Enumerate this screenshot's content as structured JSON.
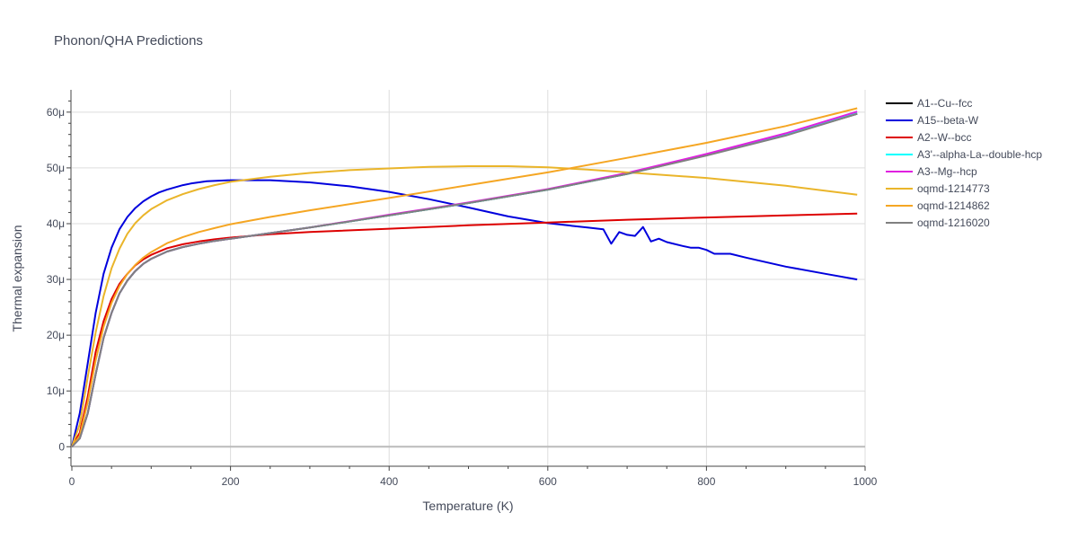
{
  "chart_data": {
    "type": "line",
    "title": "Phonon/QHA Predictions",
    "xlabel": "Temperature (K)",
    "ylabel": "Thermal expansion",
    "xlim": [
      0,
      1000
    ],
    "ylim": [
      -3.5,
      64
    ],
    "x_ticks": [
      0,
      200,
      400,
      600,
      800,
      1000
    ],
    "x_tick_labels": [
      "0",
      "200",
      "400",
      "600",
      "800",
      "1000"
    ],
    "y_ticks": [
      0,
      10,
      20,
      30,
      40,
      50,
      60
    ],
    "y_tick_labels": [
      "0",
      "10μ",
      "20μ",
      "30μ",
      "40μ",
      "50μ",
      "60μ"
    ],
    "grid": true,
    "legend_position": "right",
    "series": [
      {
        "name": "A1--Cu--fcc",
        "color": "#000000",
        "x": [
          0,
          10,
          20,
          30,
          40,
          50,
          60,
          70,
          80,
          90,
          100,
          120,
          140,
          160,
          180,
          200,
          250,
          300,
          400,
          500,
          600,
          700,
          800,
          900,
          990
        ],
        "y": [
          0,
          1.5,
          6,
          13,
          19.5,
          24,
          27.5,
          29.8,
          31.5,
          32.8,
          33.7,
          35,
          35.8,
          36.4,
          36.9,
          37.3,
          38.3,
          39.3,
          41.5,
          43.7,
          46.1,
          48.9,
          52.3,
          55.9,
          59.7
        ]
      },
      {
        "name": "A15--beta-W",
        "color": "#0000dd",
        "x": [
          0,
          10,
          20,
          30,
          40,
          50,
          60,
          70,
          80,
          90,
          100,
          110,
          120,
          130,
          140,
          150,
          170,
          200,
          250,
          300,
          350,
          400,
          450,
          500,
          550,
          600,
          650,
          670,
          680,
          690,
          700,
          710,
          720,
          730,
          740,
          750,
          770,
          780,
          790,
          800,
          810,
          820,
          830,
          850,
          900,
          950,
          990
        ],
        "y": [
          0,
          6,
          15,
          24,
          31,
          35.7,
          39,
          41.2,
          42.8,
          44,
          44.9,
          45.6,
          46.1,
          46.5,
          46.9,
          47.2,
          47.6,
          47.8,
          47.8,
          47.4,
          46.7,
          45.7,
          44.4,
          42.9,
          41.3,
          40.1,
          39.3,
          39,
          36.4,
          38.5,
          38,
          37.8,
          39.4,
          36.8,
          37.3,
          36.7,
          36,
          35.7,
          35.7,
          35.3,
          34.6,
          34.6,
          34.6,
          33.9,
          32.3,
          31,
          30
        ]
      },
      {
        "name": "A2--W--bcc",
        "color": "#dd0000",
        "x": [
          0,
          10,
          20,
          30,
          40,
          50,
          60,
          70,
          80,
          90,
          100,
          120,
          140,
          160,
          180,
          200,
          250,
          300,
          400,
          500,
          600,
          700,
          800,
          900,
          990
        ],
        "y": [
          0,
          2.5,
          9,
          17,
          22.5,
          26.5,
          29.2,
          31,
          32.5,
          33.6,
          34.4,
          35.6,
          36.3,
          36.8,
          37.2,
          37.5,
          38.1,
          38.5,
          39.1,
          39.7,
          40.2,
          40.7,
          41.1,
          41.5,
          41.8
        ]
      },
      {
        "name": "A3'--alpha-La--double-hcp",
        "color": "#00ffff",
        "x": [
          0,
          10,
          20,
          30,
          40,
          50,
          60,
          70,
          80,
          90,
          100,
          120,
          140,
          160,
          180,
          200,
          250,
          300,
          400,
          500,
          600,
          700,
          800,
          900,
          990
        ],
        "y": [
          0,
          1.5,
          6,
          13,
          19.5,
          24,
          27.5,
          29.8,
          31.5,
          32.8,
          33.7,
          35,
          35.8,
          36.4,
          36.9,
          37.3,
          38.3,
          39.3,
          41.5,
          43.7,
          46.1,
          48.9,
          52.3,
          55.9,
          59.8
        ]
      },
      {
        "name": "A3--Mg--hcp",
        "color": "#e020e0",
        "x": [
          0,
          10,
          20,
          30,
          40,
          50,
          60,
          70,
          80,
          90,
          100,
          120,
          140,
          160,
          180,
          200,
          250,
          300,
          400,
          500,
          600,
          700,
          800,
          900,
          990
        ],
        "y": [
          0,
          1.5,
          6,
          13,
          19.5,
          24,
          27.5,
          29.8,
          31.5,
          32.8,
          33.7,
          35,
          35.8,
          36.4,
          36.9,
          37.3,
          38.3,
          39.3,
          41.6,
          43.8,
          46.2,
          49.1,
          52.5,
          56.2,
          60.1
        ]
      },
      {
        "name": "oqmd-1214773",
        "color": "#eab52a",
        "x": [
          0,
          10,
          20,
          30,
          40,
          50,
          60,
          70,
          80,
          90,
          100,
          120,
          140,
          160,
          180,
          200,
          250,
          300,
          350,
          400,
          450,
          500,
          550,
          600,
          650,
          700,
          800,
          900,
          990
        ],
        "y": [
          0,
          4,
          12.5,
          20.5,
          27,
          32,
          35.5,
          38.2,
          40.1,
          41.5,
          42.6,
          44.2,
          45.3,
          46.2,
          46.9,
          47.5,
          48.4,
          49.1,
          49.6,
          49.9,
          50.2,
          50.3,
          50.3,
          50.1,
          49.7,
          49.2,
          48.2,
          46.8,
          45.2
        ]
      },
      {
        "name": "oqmd-1214862",
        "color": "#f5a623",
        "x": [
          0,
          10,
          20,
          30,
          40,
          50,
          60,
          70,
          80,
          90,
          100,
          120,
          140,
          160,
          180,
          200,
          250,
          300,
          400,
          500,
          600,
          700,
          800,
          900,
          990
        ],
        "y": [
          0,
          2,
          8,
          15.5,
          21.5,
          25.8,
          28.8,
          31,
          32.6,
          33.9,
          34.9,
          36.5,
          37.6,
          38.5,
          39.2,
          39.9,
          41.2,
          42.4,
          44.6,
          46.9,
          49.2,
          51.8,
          54.5,
          57.5,
          60.7
        ]
      },
      {
        "name": "oqmd-1216020",
        "color": "#808080",
        "x": [
          0,
          10,
          20,
          30,
          40,
          50,
          60,
          70,
          80,
          90,
          100,
          120,
          140,
          160,
          180,
          200,
          250,
          300,
          400,
          500,
          600,
          700,
          800,
          900,
          990
        ],
        "y": [
          0,
          1.5,
          6,
          13,
          19.5,
          24,
          27.5,
          29.8,
          31.5,
          32.8,
          33.7,
          35,
          35.8,
          36.4,
          36.9,
          37.3,
          38.3,
          39.3,
          41.5,
          43.7,
          46.1,
          48.9,
          52.2,
          55.8,
          59.7
        ]
      }
    ]
  }
}
